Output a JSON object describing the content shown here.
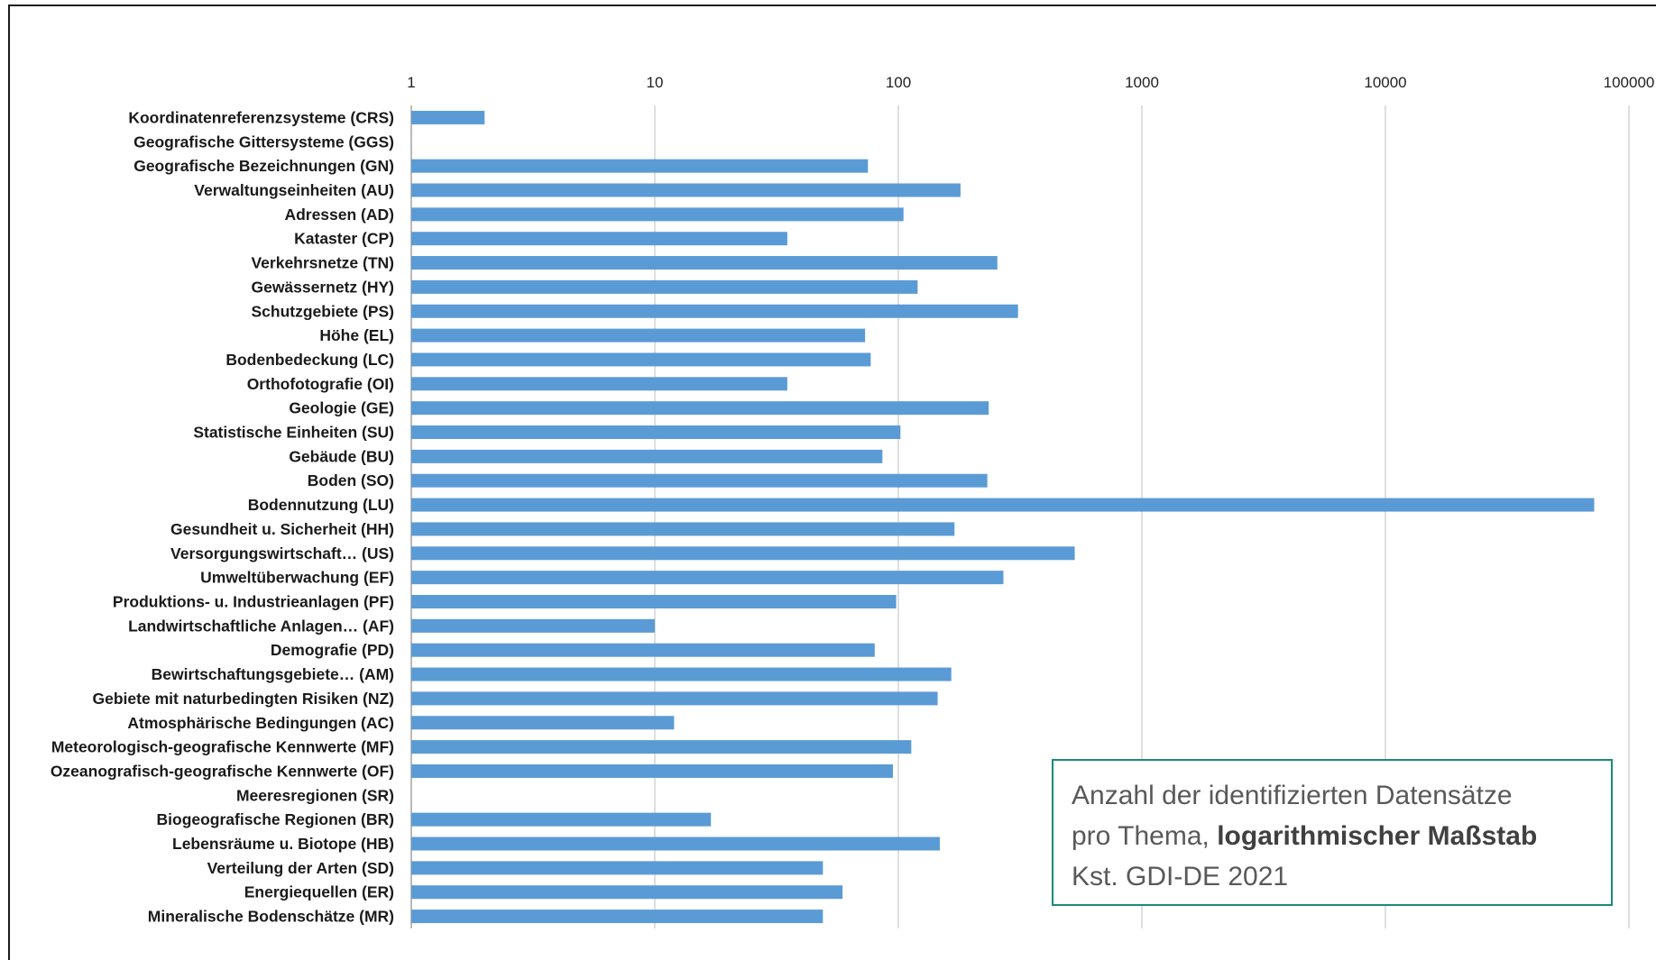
{
  "chart_data": {
    "type": "bar",
    "orientation": "horizontal",
    "x_scale": "log",
    "xlim": [
      1,
      100000
    ],
    "x_ticks": [
      "1",
      "10",
      "100",
      "1000",
      "10000",
      "100000"
    ],
    "x_axis_position": "top",
    "grid": true,
    "bar_color": "#5b9bd5",
    "categories": [
      "Koordinatenreferenzsysteme (CRS)",
      "Geografische Gittersysteme (GGS)",
      "Geografische Bezeichnungen (GN)",
      "Verwaltungseinheiten (AU)",
      "Adressen (AD)",
      "Kataster (CP)",
      "Verkehrsnetze (TN)",
      "Gewässernetz (HY)",
      "Schutzgebiete (PS)",
      "Höhe (EL)",
      "Bodenbedeckung (LC)",
      "Orthofotografie (OI)",
      "Geologie (GE)",
      "Statistische Einheiten (SU)",
      "Gebäude (BU)",
      "Boden (SO)",
      "Bodennutzung (LU)",
      "Gesundheit u. Sicherheit (HH)",
      "Versorgungswirtschaft… (US)",
      "Umweltüberwachung (EF)",
      "Produktions- u. Industrieanlagen (PF)",
      "Landwirtschaftliche Anlagen… (AF)",
      "Demografie (PD)",
      "Bewirtschaftungsgebiete… (AM)",
      "Gebiete mit naturbedingten Risiken (NZ)",
      "Atmosphärische Bedingungen (AC)",
      "Meteorologisch-geografische Kennwerte (MF)",
      "Ozeanografisch-geografische Kennwerte (OF)",
      "Meeresregionen (SR)",
      "Biogeografische Regionen (BR)",
      "Lebensräume u. Biotope (HB)",
      "Verteilung der Arten (SD)",
      "Energiequellen (ER)",
      "Mineralische Bodenschätze (MR)"
    ],
    "values": [
      2,
      null,
      75,
      180,
      105,
      35,
      255,
      120,
      310,
      73,
      77,
      35,
      235,
      102,
      86,
      232,
      72000,
      170,
      530,
      270,
      98,
      10,
      80,
      165,
      145,
      12,
      113,
      95,
      null,
      17,
      148,
      49,
      59,
      49
    ]
  },
  "caption": {
    "line1": "Anzahl der identifizierten Datensätze",
    "line2_prefix": "pro Thema, ",
    "line2_bold": "logarithmischer Maßstab",
    "line3": "Kst. GDI-DE 2021"
  }
}
